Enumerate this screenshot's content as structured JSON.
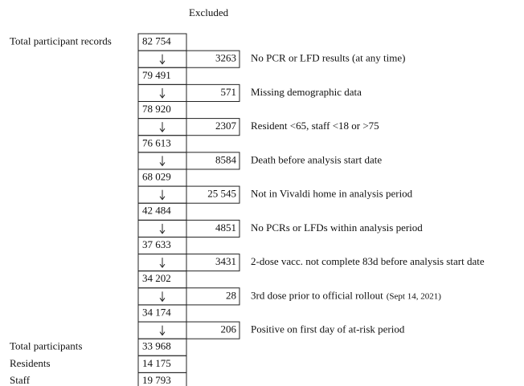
{
  "header": {
    "excluded": "Excluded"
  },
  "start": {
    "label": "Total participant records",
    "count": "82 754"
  },
  "steps": [
    {
      "excluded": "3263",
      "reason": "No PCR or LFD results (at any time)",
      "remaining": "79 491"
    },
    {
      "excluded": "571",
      "reason": "Missing demographic data",
      "remaining": "78 920"
    },
    {
      "excluded": "2307",
      "reason": "Resident <65, staff <18 or >75",
      "remaining": "76 613"
    },
    {
      "excluded": "8584",
      "reason": "Death before analysis start date",
      "remaining": "68 029"
    },
    {
      "excluded": "25 545",
      "reason": "Not in Vivaldi home in analysis period",
      "remaining": "42 484"
    },
    {
      "excluded": "4851",
      "reason": "No PCRs or LFDs within analysis period",
      "remaining": "37 633"
    },
    {
      "excluded": "3431",
      "reason": "2-dose vacc. not complete 83d before analysis start date",
      "remaining": "34 202"
    },
    {
      "excluded": "28",
      "reason": "3rd dose prior to official rollout",
      "note": "(Sept 14, 2021)",
      "remaining": "34 174"
    },
    {
      "excluded": "206",
      "reason": "Positive on first day of at-risk period",
      "remaining": "33 968"
    }
  ],
  "final": {
    "label": "Total participants"
  },
  "breakdown": [
    {
      "label": "Residents",
      "count": "14 175"
    },
    {
      "label": "Staff",
      "count": "19 793"
    }
  ]
}
